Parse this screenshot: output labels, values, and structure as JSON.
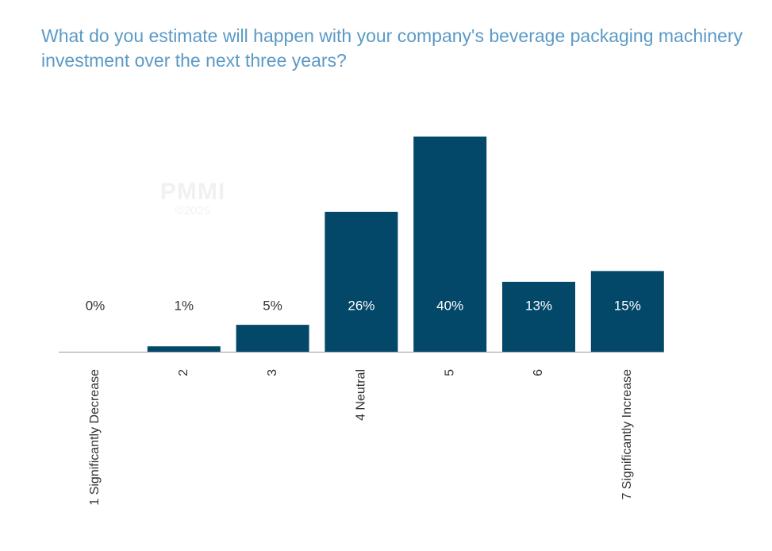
{
  "title": "What do you estimate will happen with your company's beverage packaging machinery investment over the next three years?",
  "watermark": {
    "logo": "PMMI",
    "year": "©2025"
  },
  "colors": {
    "bar": "#044869",
    "label_on_bar": "#ffffff",
    "label_above": "#333333",
    "title": "#5b9ac6",
    "axis": "#9a9a9a"
  },
  "chart_data": {
    "type": "bar",
    "categories": [
      "1 Significantly Decrease",
      "2",
      "3",
      "4 Neutral",
      "5",
      "6",
      "7 Significantly Increase"
    ],
    "values": [
      0,
      1,
      5,
      26,
      40,
      13,
      15
    ],
    "data_labels": [
      "0%",
      "1%",
      "5%",
      "26%",
      "40%",
      "13%",
      "15%"
    ],
    "title": "What do you estimate will happen with your company's beverage packaging machinery investment over the next three years?",
    "xlabel": "",
    "ylabel": "",
    "ylim": [
      0,
      40
    ],
    "grid": false,
    "legend": "none"
  }
}
